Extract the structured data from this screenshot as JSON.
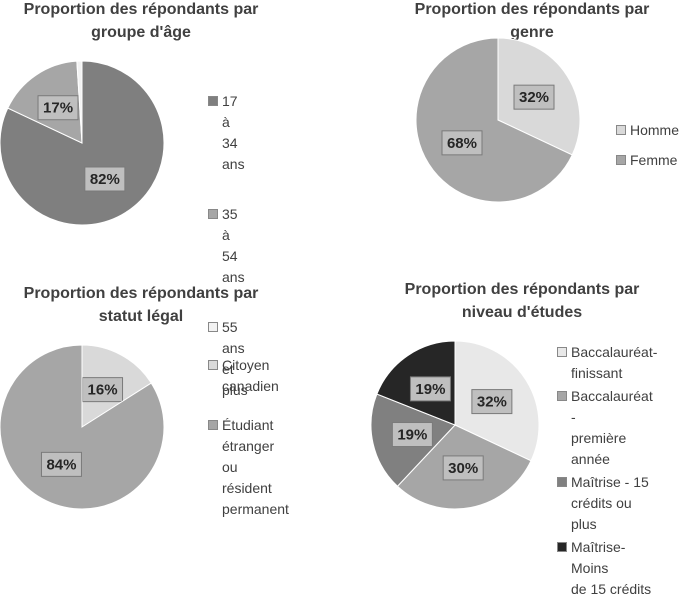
{
  "chart_data": [
    {
      "type": "pie",
      "title": "Proportion des répondants par groupe d'âge",
      "title_lines": [
        "Proportion des répondants par",
        "groupe d'âge"
      ],
      "categories": [
        "17 à 34 ans",
        "35 à 54 ans",
        "55 ans et plus"
      ],
      "values": [
        82,
        17,
        1
      ],
      "data_labels": [
        "82%",
        "17%",
        ""
      ],
      "colors": [
        "#7f7f7f",
        "#a6a6a6",
        "#f2f2f2"
      ],
      "legend": [
        [
          "17 à 34 ans"
        ],
        [
          "35 à 54 ans"
        ],
        [
          "55 ans et",
          "plus"
        ]
      ],
      "legend_position": "right"
    },
    {
      "type": "pie",
      "title": "Proportion des répondants par genre",
      "title_lines": [
        "Proportion des répondants par",
        "genre"
      ],
      "categories": [
        "Homme",
        "Femme"
      ],
      "values": [
        32,
        68
      ],
      "data_labels": [
        "32%",
        "68%"
      ],
      "colors": [
        "#d9d9d9",
        "#a6a6a6"
      ],
      "legend": [
        [
          "Homme"
        ],
        [
          "Femme"
        ]
      ],
      "legend_position": "right"
    },
    {
      "type": "pie",
      "title": "Proportion des répondants par statut légal",
      "title_lines": [
        "Proportion des répondants par",
        "statut légal"
      ],
      "categories": [
        "Citoyen canadien",
        "Étudiant étranger ou résident permanent"
      ],
      "values": [
        16,
        84
      ],
      "data_labels": [
        "16%",
        "84%"
      ],
      "colors": [
        "#d9d9d9",
        "#a6a6a6"
      ],
      "legend": [
        [
          "Citoyen",
          "canadien"
        ],
        [
          "Étudiant",
          "étranger ou",
          "résident",
          "permanent"
        ]
      ],
      "legend_position": "right"
    },
    {
      "type": "pie",
      "title": "Proportion des répondants par niveau d'études",
      "title_lines": [
        "Proportion des répondants par",
        "niveau d'études"
      ],
      "categories": [
        "Baccalauréat-finissant",
        "Baccalauréat - première année",
        "Maîtrise - 15 crédits ou plus",
        "Maîtrise- Moins de 15 crédits"
      ],
      "values": [
        32,
        30,
        19,
        19
      ],
      "data_labels": [
        "32%",
        "30%",
        "19%",
        "19%"
      ],
      "colors": [
        "#e8e8e8",
        "#a6a6a6",
        "#808080",
        "#262626"
      ],
      "legend": [
        [
          "Baccalauréat-",
          "finissant"
        ],
        [
          "Baccalauréat -",
          "première année"
        ],
        [
          "Maîtrise - 15",
          "crédits ou plus"
        ],
        [
          "Maîtrise- Moins",
          "de 15 crédits"
        ]
      ],
      "legend_position": "right"
    }
  ]
}
